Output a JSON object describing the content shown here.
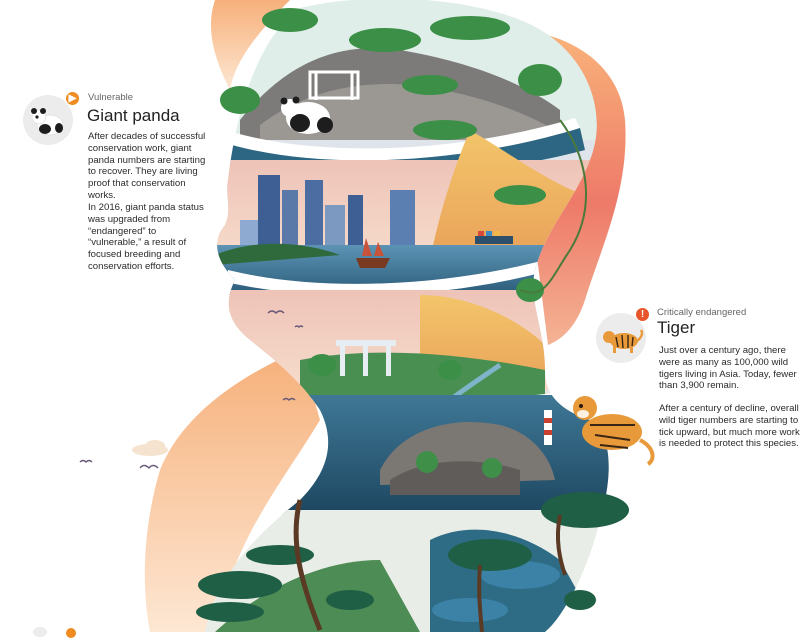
{
  "panda": {
    "status": "Vulnerable",
    "name": "Giant panda",
    "paragraph1": "After decades of successful\nconservation work, giant\npanda numbers are starting\nto recover. They are living\nproof that conservation\nworks.",
    "paragraph2": "In 2016, giant panda status\nwas upgraded from\n“endangered” to\n“vulnerable,” a result of\nfocused breeding and\nconservation efforts.",
    "badge_color": "#ef8b1f",
    "badge_icon": "play-icon"
  },
  "tiger": {
    "status": "Critically endangered",
    "name": "Tiger",
    "paragraph1": "Just over a century ago, there\nwere as many as 100,000 wild\ntigers living in Asia. Today, fewer\nthan 3,900 remain.",
    "paragraph2": "After a century of decline, overall\nwild tiger numbers are starting to\ntick upward, but much more work\nis needed to protect this species.",
    "badge_color": "#e8552d",
    "badge_icon": "exclamation-icon"
  },
  "palette": {
    "sunset_top": "#f7a870",
    "sunset_bottom": "#fce3cf",
    "foliage": "#3e9a4a",
    "water": "#2f6c8e",
    "rock": "#8a8683"
  }
}
